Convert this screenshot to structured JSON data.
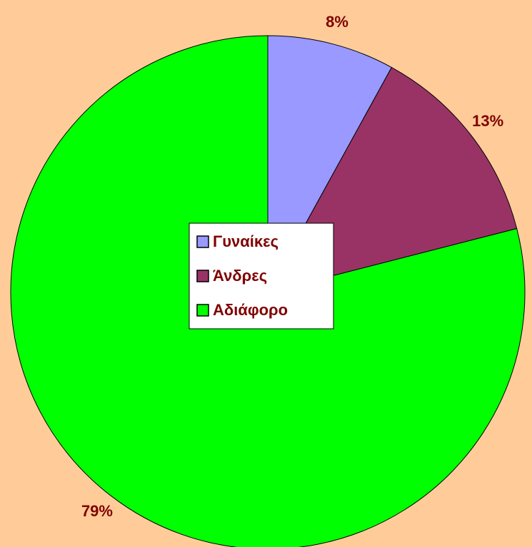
{
  "chart_data": {
    "type": "pie",
    "categories": [
      "Γυναίκες",
      "Άνδρες",
      "Αδιάφορο"
    ],
    "values": [
      8,
      13,
      79
    ],
    "value_labels": [
      "8%",
      "13%",
      "79%"
    ],
    "colors": [
      "#9999ff",
      "#993366",
      "#00ff00"
    ],
    "legend": "center"
  }
}
